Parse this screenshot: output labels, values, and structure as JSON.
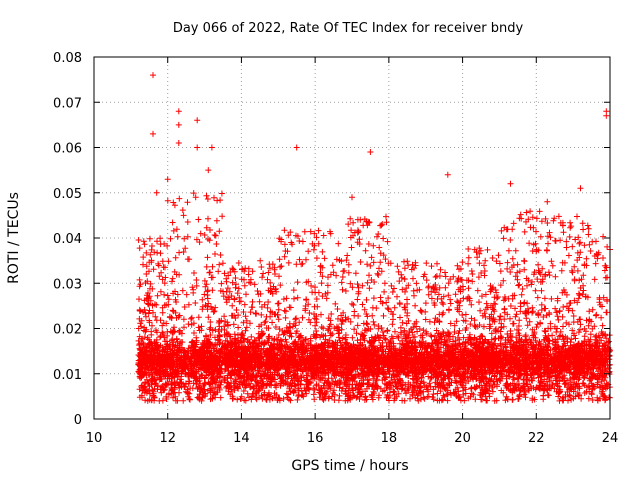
{
  "chart_data": {
    "type": "scatter",
    "title": "Day 066 of 2022, Rate Of TEC Index for receiver bndy",
    "xlabel": "GPS time / hours",
    "ylabel": "ROTI / TECUs",
    "xlim": [
      10,
      24
    ],
    "ylim": [
      0,
      0.08
    ],
    "x_ticks": [
      "10",
      "12",
      "14",
      "16",
      "18",
      "20",
      "22",
      "24"
    ],
    "y_ticks": [
      "0",
      "0.01",
      "0.02",
      "0.03",
      "0.04",
      "0.05",
      "0.06",
      "0.07",
      "0.08"
    ],
    "grid": true,
    "marker": "+",
    "color": "#ff0000",
    "x_range_data": [
      11.2,
      24.0
    ],
    "typical_band": [
      0.005,
      0.02
    ],
    "outliers": [
      {
        "x": 11.6,
        "y": 0.076
      },
      {
        "x": 11.6,
        "y": 0.063
      },
      {
        "x": 12.3,
        "y": 0.068
      },
      {
        "x": 12.3,
        "y": 0.065
      },
      {
        "x": 12.3,
        "y": 0.061
      },
      {
        "x": 12.8,
        "y": 0.066
      },
      {
        "x": 12.8,
        "y": 0.06
      },
      {
        "x": 13.2,
        "y": 0.06
      },
      {
        "x": 13.1,
        "y": 0.055
      },
      {
        "x": 15.5,
        "y": 0.06
      },
      {
        "x": 17.5,
        "y": 0.059
      },
      {
        "x": 19.6,
        "y": 0.054
      },
      {
        "x": 17.0,
        "y": 0.049
      },
      {
        "x": 23.9,
        "y": 0.068
      },
      {
        "x": 23.9,
        "y": 0.067
      },
      {
        "x": 21.3,
        "y": 0.052
      },
      {
        "x": 23.2,
        "y": 0.051
      },
      {
        "x": 22.3,
        "y": 0.048
      },
      {
        "x": 11.7,
        "y": 0.05
      },
      {
        "x": 12.0,
        "y": 0.053
      }
    ],
    "density_segments": [
      {
        "x0": 11.2,
        "x1": 12.0,
        "max": 0.04
      },
      {
        "x0": 12.0,
        "x1": 13.5,
        "max": 0.05
      },
      {
        "x0": 13.5,
        "x1": 15.0,
        "max": 0.035
      },
      {
        "x0": 15.0,
        "x1": 16.5,
        "max": 0.042
      },
      {
        "x0": 16.5,
        "x1": 18.0,
        "max": 0.045
      },
      {
        "x0": 18.0,
        "x1": 20.0,
        "max": 0.035
      },
      {
        "x0": 20.0,
        "x1": 21.0,
        "max": 0.038
      },
      {
        "x0": 21.0,
        "x1": 22.5,
        "max": 0.046
      },
      {
        "x0": 22.5,
        "x1": 24.0,
        "max": 0.045
      }
    ]
  }
}
